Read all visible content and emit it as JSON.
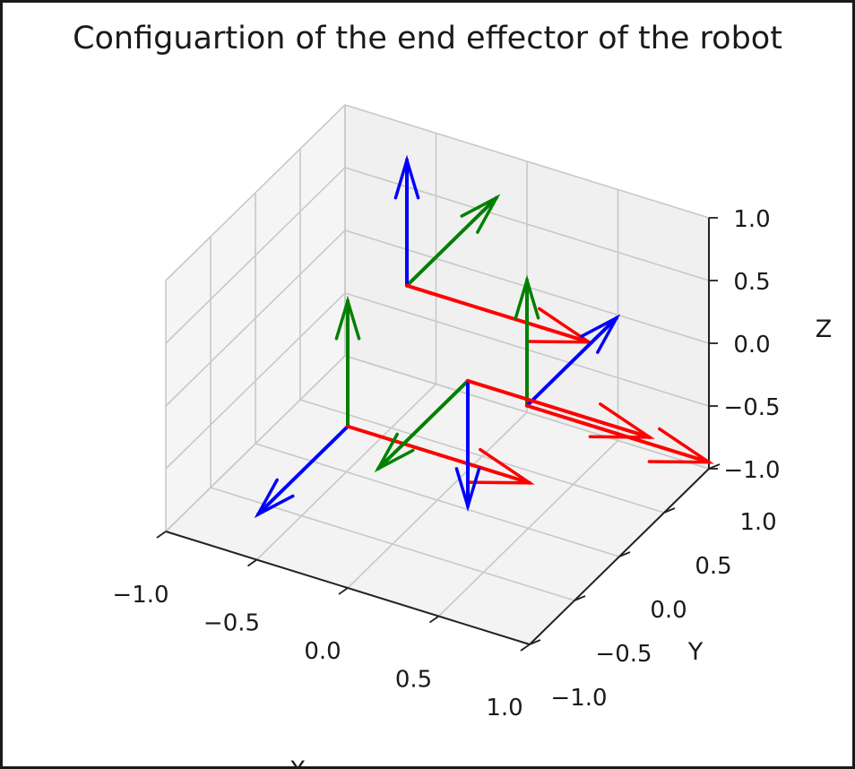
{
  "chart_data": {
    "type": "quiver3d",
    "title": "Configuartion of the end effector of the robot",
    "xlabel": "X",
    "ylabel": "Y",
    "zlabel": "Z",
    "xlim": [
      -1.0,
      1.0
    ],
    "ylim": [
      -1.0,
      1.0
    ],
    "zlim": [
      -1.0,
      1.0
    ],
    "x_ticks": [
      "−1.0",
      "−0.5",
      "0.0",
      "0.5",
      "1.0"
    ],
    "y_ticks": [
      "−1.0",
      "−0.5",
      "0.0",
      "0.5",
      "1.0"
    ],
    "z_ticks": [
      "−1.0",
      "−0.5",
      "0.0",
      "0.5",
      "1.0"
    ],
    "grid": true,
    "colors": {
      "x_axis": "#ff0000",
      "y_axis": "#008000",
      "z_axis": "#0000ff"
    },
    "frames": [
      {
        "origin": [
          -0.33,
          0.33,
          0.33
        ],
        "x_dir": [
          1,
          0,
          0
        ],
        "y_dir": [
          0,
          1,
          0
        ],
        "z_dir": [
          0,
          0,
          1
        ]
      },
      {
        "origin": [
          0.33,
          0.33,
          -0.33
        ],
        "x_dir": [
          1,
          0,
          0
        ],
        "y_dir": [
          0,
          0,
          1
        ],
        "z_dir": [
          0,
          1,
          0
        ]
      },
      {
        "origin": [
          -0.33,
          -0.33,
          -0.33
        ],
        "x_dir": [
          1,
          0,
          0
        ],
        "y_dir": [
          0,
          0,
          1
        ],
        "z_dir": [
          0,
          -1,
          0
        ]
      },
      {
        "origin": [
          0.33,
          -0.33,
          0.33
        ],
        "x_dir": [
          1,
          0,
          0
        ],
        "y_dir": [
          0,
          -1,
          0
        ],
        "z_dir": [
          0,
          0,
          -1
        ]
      }
    ]
  }
}
